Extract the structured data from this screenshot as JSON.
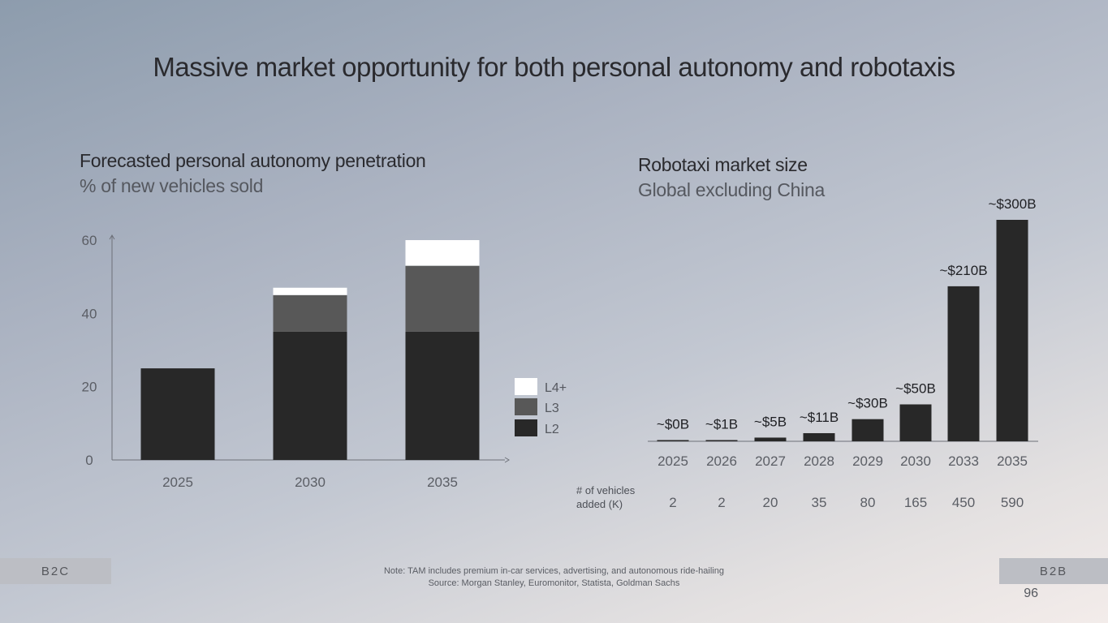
{
  "title": "Massive market opportunity for both personal autonomy and robotaxis",
  "left_title": "Forecasted personal autonomy penetration",
  "left_subtitle": "% of new vehicles sold",
  "right_title": "Robotaxi market size",
  "right_subtitle": "Global excluding China",
  "chart_data": [
    {
      "type": "bar",
      "stacked": true,
      "title": "Forecasted personal autonomy penetration",
      "subtitle": "% of new vehicles sold",
      "categories": [
        "2025",
        "2030",
        "2035"
      ],
      "series": [
        {
          "name": "L2",
          "values": [
            25,
            35,
            35
          ],
          "color": "#282828"
        },
        {
          "name": "L3",
          "values": [
            0,
            10,
            18
          ],
          "color": "#585858"
        },
        {
          "name": "L4+",
          "values": [
            0,
            2,
            7
          ],
          "color": "#ffffff"
        }
      ],
      "legend_order": [
        "L4+",
        "L3",
        "L2"
      ],
      "legend_position": "right",
      "yticks": [
        "0",
        "20",
        "40",
        "60"
      ],
      "ylim": [
        0,
        60
      ],
      "grid": false
    },
    {
      "type": "bar",
      "title": "Robotaxi market size",
      "subtitle": "Global excluding China",
      "categories": [
        "2025",
        "2026",
        "2027",
        "2028",
        "2029",
        "2030",
        "2033",
        "2035"
      ],
      "values": [
        0.3,
        1,
        5,
        11,
        30,
        50,
        210,
        300
      ],
      "labels": [
        "~$0B",
        "~$1B",
        "~$5B",
        "~$11B",
        "~$30B",
        "~$50B",
        "~$210B",
        "~$300B"
      ],
      "color": "#282828",
      "grid": false,
      "vehicles_label": "# of vehicles added (K)",
      "vehicles_added": [
        "2",
        "2",
        "20",
        "35",
        "80",
        "165",
        "450",
        "590"
      ]
    }
  ],
  "footer": {
    "b2c": "B2C",
    "b2b": "B2B",
    "note": "Note: TAM includes premium in-car services, advertising, and autonomous ride-hailing",
    "source": "Source: Morgan Stanley, Euromonitor, Statista, Goldman Sachs",
    "page": "96"
  }
}
